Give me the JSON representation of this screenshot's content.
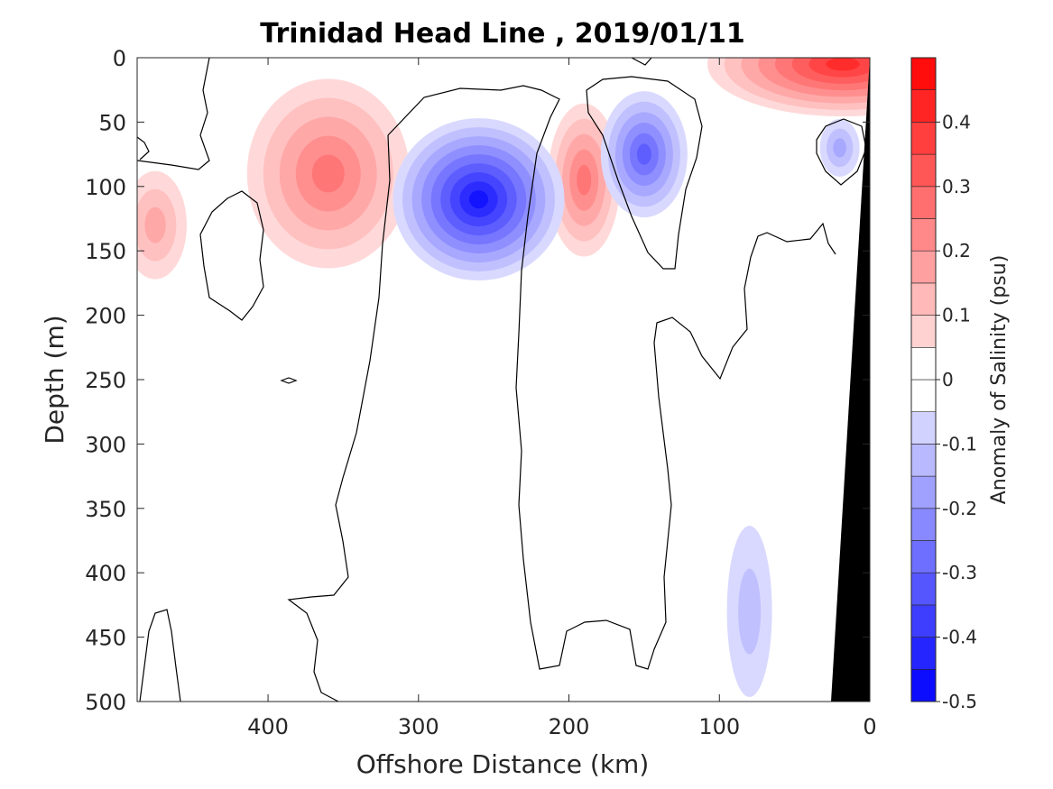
{
  "chart_data": {
    "type": "heatmap",
    "title": "Trinidad Head Line , 2019/01/11",
    "xlabel": "Offshore Distance (km)",
    "ylabel": "Depth (m)",
    "x_reversed": true,
    "y_reversed": true,
    "xlim": [
      0,
      487
    ],
    "ylim": [
      0,
      500
    ],
    "x_ticks": [
      400,
      300,
      200,
      100,
      0
    ],
    "y_ticks": [
      0,
      50,
      100,
      150,
      200,
      250,
      300,
      350,
      400,
      450,
      500
    ],
    "colorbar": {
      "label": "Anomaly of Salinity (psu)",
      "range": [
        -0.5,
        0.5
      ],
      "levels": [
        -0.5,
        -0.45,
        -0.4,
        -0.35,
        -0.3,
        -0.25,
        -0.2,
        -0.15,
        -0.1,
        -0.05,
        0,
        0.05,
        0.1,
        0.15,
        0.2,
        0.25,
        0.3,
        0.35,
        0.4,
        0.45,
        0.5
      ],
      "ticks": [
        0.4,
        0.3,
        0.2,
        0.1,
        0,
        -0.1,
        -0.2,
        -0.3,
        -0.4,
        -0.5
      ],
      "tick_labels": [
        "0.4",
        "0.3",
        "0.2",
        "0.1",
        "0",
        "-0.1",
        "-0.2",
        "-0.3",
        "-0.4",
        "-0.5"
      ],
      "negative_color": "#0000ff",
      "positive_color": "#ff0000"
    },
    "features": [
      {
        "name": "salty-core-inshore",
        "x_km": 18,
        "depth_m": 5,
        "anomaly": 0.4
      },
      {
        "name": "salty-core-offshore",
        "x_km": 360,
        "depth_m": 90,
        "anomaly": 0.25
      },
      {
        "name": "salty-core-mid",
        "x_km": 190,
        "depth_m": 95,
        "anomaly": 0.25
      },
      {
        "name": "salty-core-west",
        "x_km": 475,
        "depth_m": 130,
        "anomaly": 0.15
      },
      {
        "name": "fresh-eddy-main",
        "x_km": 260,
        "depth_m": 110,
        "anomaly": -0.45
      },
      {
        "name": "fresh-eddy-inner",
        "x_km": 150,
        "depth_m": 75,
        "anomaly": -0.3
      },
      {
        "name": "fresh-patch-coast",
        "x_km": 20,
        "depth_m": 70,
        "anomaly": -0.15
      },
      {
        "name": "fresh-patch-deep",
        "x_km": 80,
        "depth_m": 430,
        "anomaly": -0.08
      }
    ],
    "bathymetry_color": "#000000"
  }
}
